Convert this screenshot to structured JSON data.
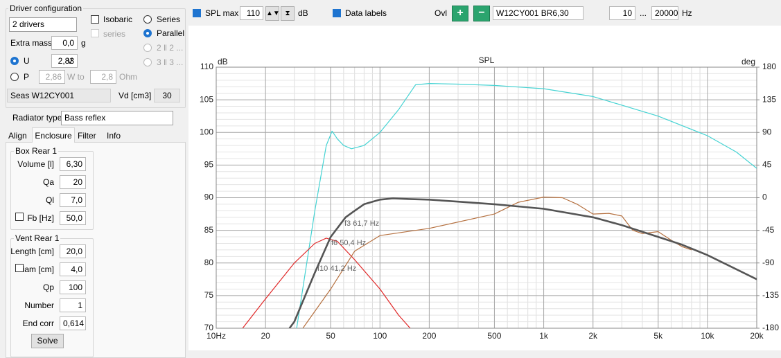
{
  "panel": {
    "driver_config": "Driver configuration",
    "drivers_select": "2 drivers",
    "isobaric": "Isobaric",
    "series_check": "series",
    "series_radio": "Series",
    "parallel_radio": "Parallel",
    "opt_2": "2 ‖ 2 ...",
    "opt_3": "3 ‖ 3 ...",
    "extra_mass_label": "Extra mass",
    "extra_mass_value": "0,0",
    "extra_mass_unit": "g",
    "u_label": "U",
    "u_value": "2,83",
    "u_unit": "V",
    "p_label": "P",
    "p_value": "2,86",
    "w_to": "W to",
    "w_to_value": "2,8",
    "ohm": "Ohm",
    "driver_name": "Seas W12CY001",
    "vd_label": "Vd [cm3]",
    "vd_value": "30",
    "radiator_label": "Radiator type",
    "radiator_value": "Bass reflex",
    "tabs": [
      "Align",
      "Enclosure",
      "Filter",
      "Info"
    ],
    "box": {
      "title": "Box Rear 1",
      "fields": [
        {
          "label": "Volume [l]",
          "value": "6,30"
        },
        {
          "label": "Qa",
          "value": "20"
        },
        {
          "label": "Ql",
          "value": "7,0"
        },
        {
          "label": "Fb [Hz]",
          "value": "50,0"
        }
      ]
    },
    "vent": {
      "title": "Vent Rear 1",
      "fields": [
        {
          "label": "Length [cm]",
          "value": "20,0"
        },
        {
          "label": "Diam [cm]",
          "value": "4,0"
        },
        {
          "label": "Qp",
          "value": "100"
        },
        {
          "label": "Number",
          "value": "1"
        },
        {
          "label": "End corr",
          "value": "0,614"
        }
      ]
    },
    "solve": "Solve"
  },
  "toolbar": {
    "spl_max": "SPL max",
    "spl_max_value": "110",
    "db": "dB",
    "data_labels": "Data labels",
    "ovl": "Ovl",
    "driver_box": "W12CY001 BR6,30",
    "f_from": "10",
    "ellipsis": "...",
    "f_to": "20000",
    "hz": "Hz"
  },
  "chart_data": {
    "type": "line",
    "title": "SPL",
    "ylabel": "dB",
    "y2label": "deg",
    "xscale": "log",
    "grid": true,
    "xlim": [
      10,
      20000
    ],
    "xticks": [
      {
        "value": 10,
        "label": "10Hz"
      },
      20,
      50,
      100,
      200,
      500,
      {
        "value": 1000,
        "label": "1k"
      },
      {
        "value": 2000,
        "label": "2k"
      },
      {
        "value": 5000,
        "label": "5k"
      },
      {
        "value": 10000,
        "label": "10k"
      },
      {
        "value": 20000,
        "label": "20k"
      }
    ],
    "ylim": [
      70,
      110
    ],
    "yticks": [
      70,
      75,
      80,
      85,
      90,
      95,
      100,
      105,
      110
    ],
    "y2lim": [
      -180,
      180
    ],
    "y2ticks": [
      -180,
      -135,
      -90,
      -45,
      0,
      45,
      90,
      135,
      180
    ],
    "series": [
      {
        "color": "#45d3d3",
        "x": [
          31,
          40,
          47,
          51,
          55,
          60,
          67,
          80,
          100,
          130,
          165,
          200,
          300,
          500,
          1000,
          2000,
          5000,
          10000,
          15000,
          20000
        ],
        "values": [
          70,
          88,
          98,
          100.2,
          99,
          98,
          97.5,
          98,
          100,
          103.5,
          107.3,
          107.5,
          107.4,
          107.2,
          106.7,
          105.5,
          102.5,
          99.5,
          97,
          94.5
        ]
      },
      {
        "color": "#e02828",
        "x": [
          14.5,
          20,
          30,
          40,
          47,
          55,
          70,
          100,
          130,
          153
        ],
        "values": [
          70,
          74.5,
          80,
          83,
          83.8,
          83.3,
          80.5,
          76,
          72,
          70
        ]
      },
      {
        "color": "#b5703f",
        "x": [
          33.8,
          50,
          70,
          100,
          200,
          500,
          700,
          1000,
          1300,
          1600,
          2000,
          2500,
          3000,
          3500,
          4000,
          5000,
          6000,
          7000,
          8000
        ],
        "values": [
          70,
          76,
          81.8,
          84.2,
          85.3,
          87.5,
          89.3,
          90.1,
          90,
          89,
          87.5,
          87.6,
          87.2,
          85,
          84.5,
          84.8,
          83.5,
          82.5,
          82
        ]
      },
      {
        "color": "#555555",
        "x": [
          28,
          30,
          40,
          50,
          61.7,
          70,
          80,
          100,
          120,
          150,
          200,
          300,
          500,
          1000,
          2000,
          3000,
          5000,
          7000,
          10000,
          20000
        ],
        "values": [
          70,
          71,
          78.5,
          84,
          87,
          88,
          89,
          89.7,
          89.9,
          89.8,
          89.7,
          89.4,
          89,
          88.3,
          87,
          85.8,
          84,
          82.8,
          81.2,
          77.5
        ]
      }
    ],
    "annotations": [
      "f3 61,7 Hz",
      "f6 50,4 Hz",
      "f10 41,2 Hz"
    ]
  }
}
